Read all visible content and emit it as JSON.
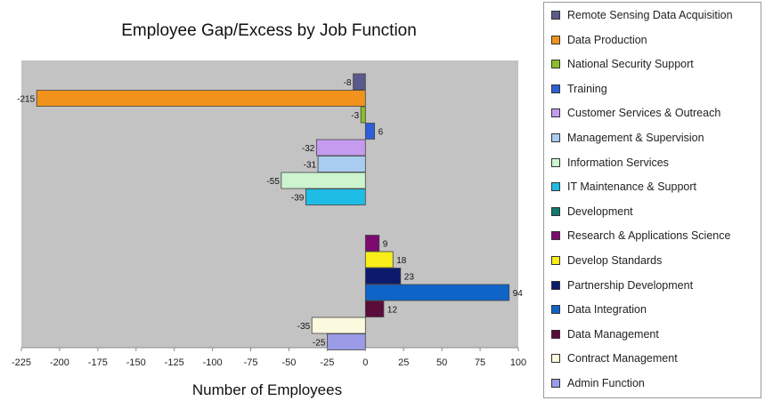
{
  "chart_data": {
    "type": "bar",
    "orientation": "horizontal",
    "title": "Employee Gap/Excess by Job Function",
    "xlabel": "Number of Employees",
    "ylabel": "",
    "xlim": [
      -225,
      100
    ],
    "xticks": [
      -225,
      -200,
      -175,
      -150,
      -125,
      -100,
      -75,
      -50,
      -25,
      0,
      25,
      50,
      75,
      100
    ],
    "grid": false,
    "legend_position": "right",
    "series": [
      {
        "name": "Remote Sensing Data Acquisition",
        "value": -8,
        "color": "#5a5a8c",
        "label": "-8"
      },
      {
        "name": "Data Production",
        "value": -215,
        "color": "#f0921c",
        "label": "-215"
      },
      {
        "name": "National Security Support",
        "value": -3,
        "color": "#8cbf26",
        "label": "-3"
      },
      {
        "name": "Training",
        "value": 6,
        "color": "#2e5fd8",
        "label": "6"
      },
      {
        "name": "Customer Services & Outreach",
        "value": -32,
        "color": "#c59bef",
        "label": "-32"
      },
      {
        "name": "Management & Supervision",
        "value": -31,
        "color": "#a9cdf0",
        "label": "-31"
      },
      {
        "name": "Information Services",
        "value": -55,
        "color": "#ccf5cf",
        "label": "-55"
      },
      {
        "name": "IT Maintenance & Support",
        "value": -39,
        "color": "#1ebde6",
        "label": "-39"
      },
      {
        "name": "Development",
        "value": 0,
        "color": "#0f7a6e",
        "label": ""
      },
      {
        "name": "Research & Applications Science",
        "value": 9,
        "color": "#7d0b6f",
        "label": "9"
      },
      {
        "name": "Develop Standards",
        "value": 18,
        "color": "#f7ee1a",
        "label": "18"
      },
      {
        "name": "Partnership Development",
        "value": 23,
        "color": "#0c1a6e",
        "label": "23"
      },
      {
        "name": "Data Integration",
        "value": 94,
        "color": "#0f64c8",
        "label": "94"
      },
      {
        "name": "Data Management",
        "value": 12,
        "color": "#5b0c3a",
        "label": "12"
      },
      {
        "name": "Contract Management",
        "value": -35,
        "color": "#fbf9de",
        "label": "-35"
      },
      {
        "name": "Admin Function",
        "value": -25,
        "color": "#9b9be8",
        "label": "-25"
      }
    ]
  }
}
